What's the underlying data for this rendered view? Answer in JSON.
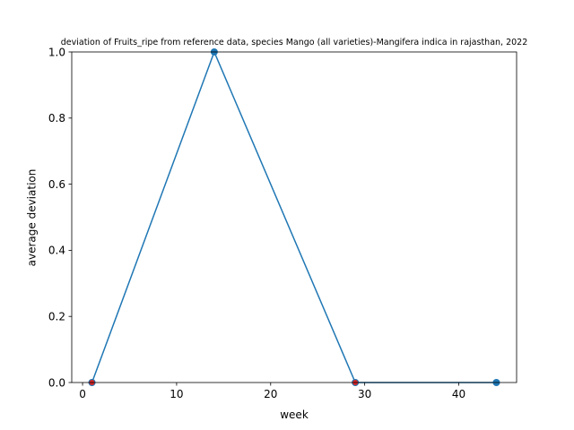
{
  "chart_data": {
    "type": "line",
    "title": "deviation of Fruits_ripe from reference data, species Mango (all varieties)-Mangifera indica in rajasthan, 2022",
    "xlabel": "week",
    "ylabel": "average deviation",
    "xlim": [
      -1.15,
      46.15
    ],
    "ylim": [
      0.0,
      1.0
    ],
    "xticks": [
      0,
      10,
      20,
      30,
      40
    ],
    "yticks": [
      0.0,
      0.2,
      0.4,
      0.6,
      0.8,
      1.0
    ],
    "xtick_labels": [
      "0",
      "10",
      "20",
      "30",
      "40"
    ],
    "ytick_labels": [
      "0.0",
      "0.2",
      "0.4",
      "0.6",
      "0.8",
      "1.0"
    ],
    "grid": false,
    "series": [
      {
        "color": "#1f77b4",
        "marker": "circle",
        "x": [
          1,
          14,
          29,
          44
        ],
        "y": [
          0.0,
          1.0,
          0.0,
          0.0
        ]
      }
    ],
    "extra_markers": {
      "color": "#d62728",
      "x": [
        1,
        29
      ],
      "y": [
        0.0,
        0.0
      ]
    }
  }
}
